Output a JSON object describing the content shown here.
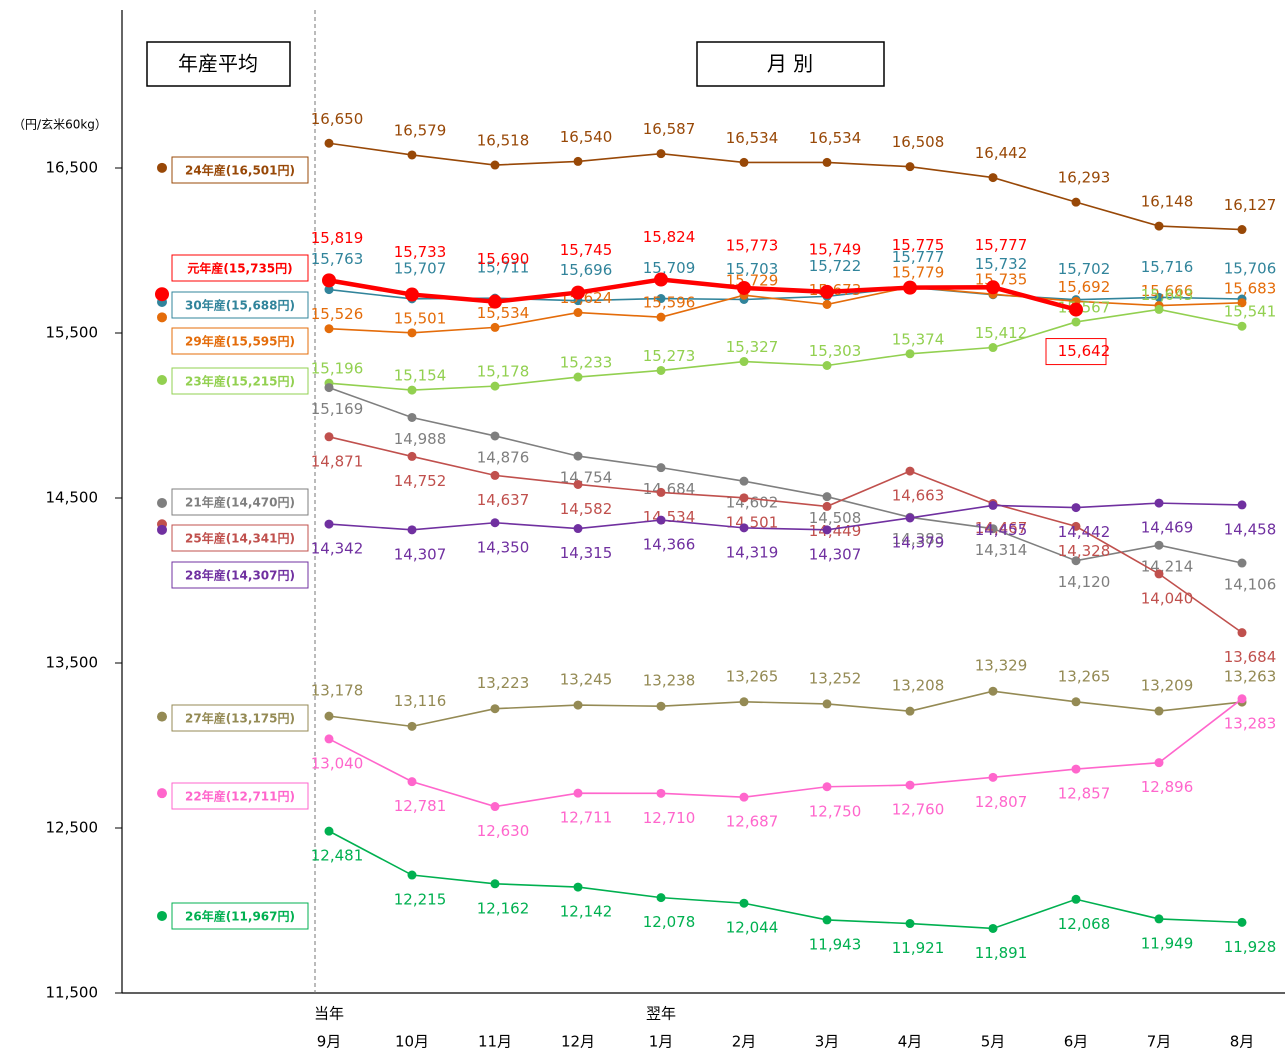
{
  "chart_data": {
    "type": "line",
    "header_left": "年産平均",
    "header_right": "月 別",
    "y_label": "（円/玄米60kg）",
    "year_labels": [
      "当年",
      "翌年"
    ],
    "categories": [
      "9月",
      "10月",
      "11月",
      "12月",
      "1月",
      "2月",
      "3月",
      "4月",
      "5月",
      "6月",
      "7月",
      "8月"
    ],
    "ylim": [
      11500,
      17500
    ],
    "yticks": [
      {
        "value": 11500,
        "label": "11,500"
      },
      {
        "value": 12500,
        "label": "12,500"
      },
      {
        "value": 13500,
        "label": "13,500"
      },
      {
        "value": 14500,
        "label": "14,500"
      },
      {
        "value": 15500,
        "label": "15,500"
      },
      {
        "value": 16500,
        "label": "16,500"
      }
    ],
    "series": [
      {
        "name": "24年産(16,501円)",
        "color": "#984807",
        "average": 16501,
        "values": [
          16650,
          16579,
          16518,
          16540,
          16587,
          16534,
          16534,
          16508,
          16442,
          16293,
          16148,
          16127
        ],
        "value_labels": [
          "16,650",
          "16,579",
          "16,518",
          "16,540",
          "16,587",
          "16,534",
          "16,534",
          "16,508",
          "16,442",
          "16,293",
          "16,148",
          "16,127"
        ]
      },
      {
        "name": "元年産(15,735円)",
        "color": "#ff0000",
        "average": 15735,
        "values": [
          15819,
          15733,
          15690,
          15745,
          15824,
          15773,
          15749,
          15775,
          15777,
          15642,
          null,
          null
        ],
        "value_labels": [
          "15,819",
          "15,733",
          "15,690",
          "15,745",
          "15,824",
          "15,773",
          "15,749",
          "15,775",
          "15,777",
          "15,642",
          null,
          null
        ]
      },
      {
        "name": "30年産(15,688円)",
        "color": "#31849b",
        "average": 15688,
        "values": [
          15763,
          15707,
          15711,
          15696,
          15709,
          15703,
          15722,
          15777,
          15732,
          15702,
          15716,
          15706
        ],
        "value_labels": [
          "15,763",
          "15,707",
          "15,711",
          "15,696",
          "15,709",
          "15,703",
          "15,722",
          "15,777",
          "15,732",
          "15,702",
          "15,716",
          "15,706"
        ]
      },
      {
        "name": "29年産(15,595円)",
        "color": "#e46c0a",
        "average": 15595,
        "values": [
          15526,
          15501,
          15534,
          15624,
          15596,
          15729,
          15673,
          15779,
          15735,
          15692,
          15666,
          15683
        ],
        "value_labels": [
          "15,526",
          "15,501",
          "15,534",
          "15,624",
          "15,596",
          "15,729",
          "15,673",
          "15,779",
          "15,735",
          "15,692",
          "15,666",
          "15,683"
        ]
      },
      {
        "name": "23年産(15,215円)",
        "color": "#92d050",
        "average": 15215,
        "values": [
          15196,
          15154,
          15178,
          15233,
          15273,
          15327,
          15303,
          15374,
          15412,
          15567,
          15643,
          15541
        ],
        "value_labels": [
          "15,196",
          "15,154",
          "15,178",
          "15,233",
          "15,273",
          "15,327",
          "15,303",
          "15,374",
          "15,412",
          "15,567",
          "15,643",
          "15,541"
        ]
      },
      {
        "name": "21年産(14,470円)",
        "color": "#7f7f7f",
        "average": 14470,
        "values": [
          15169,
          14988,
          14876,
          14754,
          14684,
          14602,
          14508,
          14383,
          14314,
          14120,
          14214,
          14106
        ],
        "value_labels": [
          "15,169",
          "14,988",
          "14,876",
          "14,754",
          "14,684",
          "14,602",
          "14,508",
          "14,383",
          "14,314",
          "14,120",
          "14,214",
          "14,106"
        ]
      },
      {
        "name": "25年産(14,341円)",
        "color": "#c0504d",
        "average": 14341,
        "values": [
          14871,
          14752,
          14637,
          14582,
          14534,
          14501,
          14449,
          14663,
          14467,
          14328,
          14040,
          13684
        ],
        "value_labels": [
          "14,871",
          "14,752",
          "14,637",
          "14,582",
          "14,534",
          "14,501",
          "14,449",
          "14,663",
          "14,467",
          "14,328",
          "14,040",
          "13,684"
        ]
      },
      {
        "name": "28年産(14,307円)",
        "color": "#7030a0",
        "average": 14307,
        "values": [
          14342,
          14307,
          14350,
          14315,
          14366,
          14319,
          14307,
          14379,
          14455,
          14442,
          14469,
          14458
        ],
        "value_labels": [
          "14,342",
          "14,307",
          "14,350",
          "14,315",
          "14,366",
          "14,319",
          "14,307",
          "14,379",
          "14,455",
          "14,442",
          "14,469",
          "14,458"
        ]
      },
      {
        "name": "27年産(13,175円)",
        "color": "#948a54",
        "average": 13175,
        "values": [
          13178,
          13116,
          13223,
          13245,
          13238,
          13265,
          13252,
          13208,
          13329,
          13265,
          13209,
          13263
        ],
        "value_labels": [
          "13,178",
          "13,116",
          "13,223",
          "13,245",
          "13,238",
          "13,265",
          "13,252",
          "13,208",
          "13,329",
          "13,265",
          "13,209",
          "13,263"
        ]
      },
      {
        "name": "22年産(12,711円)",
        "color": "#ff66cc",
        "average": 12711,
        "values": [
          13040,
          12781,
          12630,
          12711,
          12710,
          12687,
          12750,
          12760,
          12807,
          12857,
          12896,
          13283
        ],
        "value_labels": [
          "13,040",
          "12,781",
          "12,630",
          "12,711",
          "12,710",
          "12,687",
          "12,750",
          "12,760",
          "12,807",
          "12,857",
          "12,896",
          "13,283"
        ]
      },
      {
        "name": "26年産(11,967円)",
        "color": "#00b050",
        "average": 11967,
        "values": [
          12481,
          12215,
          12162,
          12142,
          12078,
          12044,
          11943,
          11921,
          11891,
          12068,
          11949,
          11928
        ],
        "value_labels": [
          "12,481",
          "12,215",
          "12,162",
          "12,142",
          "12,078",
          "12,044",
          "11,943",
          "11,921",
          "11,891",
          "12,068",
          "11,949",
          "11,928"
        ]
      }
    ]
  }
}
